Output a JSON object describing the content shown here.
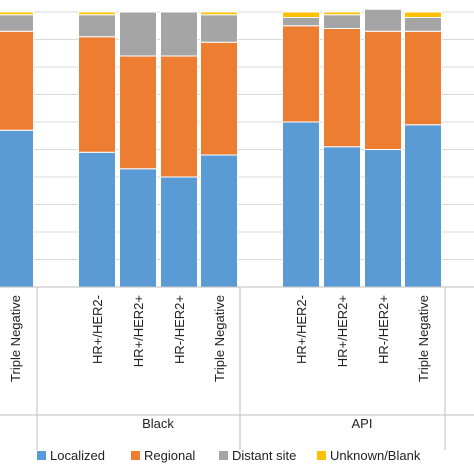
{
  "chart_data": {
    "type": "bar",
    "stacked": true,
    "ylim": [
      0,
      100
    ],
    "grid": true,
    "legend_position": "bottom",
    "categories": [
      "Triple Negative",
      "HR+/HER2-",
      "HR+/HER2+",
      "HR-/HER2+",
      "Triple Negative",
      "HR+/HER2-",
      "HR+/HER2+",
      "HR-/HER2+",
      "Triple Negative"
    ],
    "groups": [
      {
        "label": "",
        "categories": [
          0
        ]
      },
      {
        "label": "Black",
        "categories": [
          1,
          2,
          3,
          4
        ]
      },
      {
        "label": "API",
        "categories": [
          5,
          6,
          7,
          8
        ]
      }
    ],
    "series": [
      {
        "name": "Localized",
        "color": "#5B9BD5",
        "values": [
          57,
          49,
          43,
          40,
          48,
          60,
          51,
          50,
          59
        ]
      },
      {
        "name": "Regional",
        "color": "#ED7D31",
        "values": [
          36,
          42,
          41,
          44,
          41,
          35,
          43,
          43,
          34
        ]
      },
      {
        "name": "Distant site",
        "color": "#A5A5A5",
        "values": [
          6,
          8,
          16,
          16,
          10,
          3,
          5,
          8,
          5
        ]
      },
      {
        "name": "Unknown/Blank",
        "color": "#FFC000",
        "values": [
          1,
          1,
          0,
          0,
          1,
          2,
          1,
          0,
          2
        ]
      }
    ]
  }
}
